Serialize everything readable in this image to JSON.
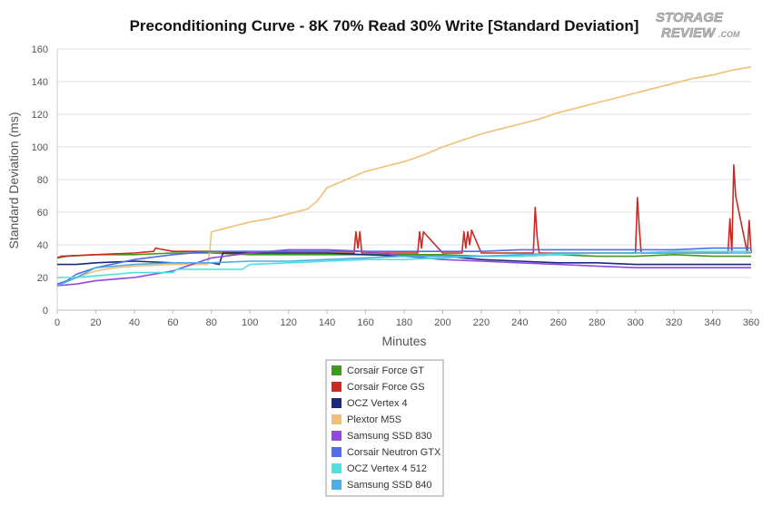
{
  "chart_data": {
    "type": "line",
    "title": "Preconditioning Curve - 8K 70% Read 30% Write [Standard Deviation]",
    "xlabel": "Minutes",
    "ylabel": "Standard Deviation (ms)",
    "xlim": [
      0,
      360
    ],
    "ylim": [
      0,
      160
    ],
    "xticks": [
      0,
      20,
      40,
      60,
      80,
      100,
      120,
      140,
      160,
      180,
      200,
      220,
      240,
      260,
      280,
      300,
      320,
      340,
      360
    ],
    "yticks": [
      0,
      20,
      40,
      60,
      80,
      100,
      120,
      140,
      160
    ],
    "grid": "horizontal",
    "legend_position": "bottom-center",
    "series": [
      {
        "name": "Corsair Force GT",
        "color": "#3f9a1c",
        "x": [
          0,
          5,
          20,
          40,
          60,
          80,
          100,
          120,
          140,
          160,
          180,
          200,
          220,
          240,
          260,
          280,
          300,
          320,
          340,
          360
        ],
        "y": [
          32,
          33,
          34,
          34,
          35,
          35,
          34,
          34,
          34,
          34,
          34,
          34,
          33,
          33,
          34,
          33,
          33,
          34,
          33,
          33
        ]
      },
      {
        "name": "Corsair Force GS",
        "color": "#c92a24",
        "x": [
          0,
          2,
          20,
          40,
          50,
          51,
          60,
          80,
          100,
          120,
          140,
          154,
          155,
          156,
          157,
          158,
          160,
          180,
          187,
          188,
          189,
          190,
          200,
          210,
          211,
          212,
          213,
          214,
          215,
          220,
          240,
          247,
          248,
          249,
          250,
          260,
          300,
          301,
          302,
          303,
          340,
          348,
          349,
          350,
          351,
          352,
          358,
          359,
          360
        ],
        "y": [
          32,
          33,
          34,
          35,
          36,
          38,
          36,
          36,
          35,
          35,
          35,
          35,
          48,
          38,
          48,
          35,
          35,
          35,
          35,
          48,
          38,
          48,
          35,
          35,
          48,
          38,
          48,
          40,
          49,
          35,
          35,
          35,
          63,
          45,
          35,
          35,
          35,
          69,
          50,
          35,
          35,
          35,
          56,
          35,
          89,
          70,
          35,
          55,
          35
        ]
      },
      {
        "name": "OCZ Vertex 4",
        "color": "#1a2a7a",
        "x": [
          0,
          10,
          20,
          40,
          60,
          80,
          84,
          86,
          100,
          120,
          140,
          160,
          180,
          200,
          220,
          240,
          260,
          280,
          300,
          320,
          340,
          360
        ],
        "y": [
          28,
          28,
          29,
          30,
          29,
          29,
          28,
          35,
          35,
          35,
          35,
          34,
          33,
          33,
          31,
          30,
          29,
          29,
          28,
          28,
          28,
          28
        ]
      },
      {
        "name": "Plextor M5S",
        "color": "#f0c078",
        "x": [
          0,
          10,
          20,
          30,
          40,
          60,
          78,
          79,
          80,
          90,
          100,
          110,
          120,
          130,
          135,
          140,
          150,
          160,
          170,
          180,
          190,
          200,
          210,
          220,
          230,
          240,
          250,
          260,
          270,
          280,
          290,
          300,
          310,
          320,
          330,
          340,
          350,
          360
        ],
        "y": [
          15,
          20,
          24,
          26,
          27,
          28,
          28,
          35,
          48,
          51,
          54,
          56,
          59,
          62,
          67,
          75,
          80,
          85,
          88,
          91,
          95,
          100,
          104,
          108,
          111,
          114,
          117,
          121,
          124,
          127,
          130,
          133,
          136,
          139,
          142,
          144,
          147,
          149
        ]
      },
      {
        "name": "Samsung SSD 830",
        "color": "#9148e0",
        "x": [
          0,
          10,
          20,
          40,
          60,
          80,
          100,
          120,
          140,
          160,
          180,
          200,
          220,
          240,
          260,
          280,
          300,
          320,
          340,
          360
        ],
        "y": [
          15,
          16,
          18,
          20,
          24,
          32,
          35,
          37,
          37,
          36,
          33,
          31,
          30,
          29,
          28,
          27,
          26,
          26,
          26,
          26
        ]
      },
      {
        "name": "Corsair Neutron GTX",
        "color": "#4f6ee8",
        "x": [
          0,
          5,
          10,
          20,
          40,
          60,
          80,
          100,
          120,
          140,
          160,
          180,
          200,
          220,
          240,
          260,
          280,
          300,
          320,
          340,
          360
        ],
        "y": [
          16,
          18,
          22,
          26,
          31,
          34,
          36,
          36,
          36,
          36,
          36,
          36,
          36,
          36,
          37,
          37,
          37,
          37,
          37,
          38,
          38
        ]
      },
      {
        "name": "OCZ Vertex 4 512",
        "color": "#4fe0e0",
        "x": [
          0,
          10,
          20,
          40,
          60,
          62,
          80,
          96,
          100,
          120,
          140,
          160,
          180,
          200,
          220,
          240,
          260,
          280,
          300,
          320,
          340,
          360
        ],
        "y": [
          20,
          20,
          21,
          23,
          23,
          25,
          25,
          25,
          28,
          29,
          30,
          31,
          31,
          32,
          33,
          33,
          34,
          35,
          35,
          36,
          36,
          36
        ]
      },
      {
        "name": "Samsung SSD 840",
        "color": "#4aaee8",
        "x": [
          0,
          10,
          20,
          40,
          60,
          80,
          100,
          120,
          140,
          160,
          180,
          200,
          220,
          240,
          260,
          280,
          300,
          320,
          340,
          360
        ],
        "y": [
          15,
          20,
          26,
          28,
          29,
          29,
          30,
          30,
          31,
          32,
          33,
          33,
          33,
          34,
          35,
          35,
          35,
          35,
          35,
          35
        ]
      }
    ]
  }
}
